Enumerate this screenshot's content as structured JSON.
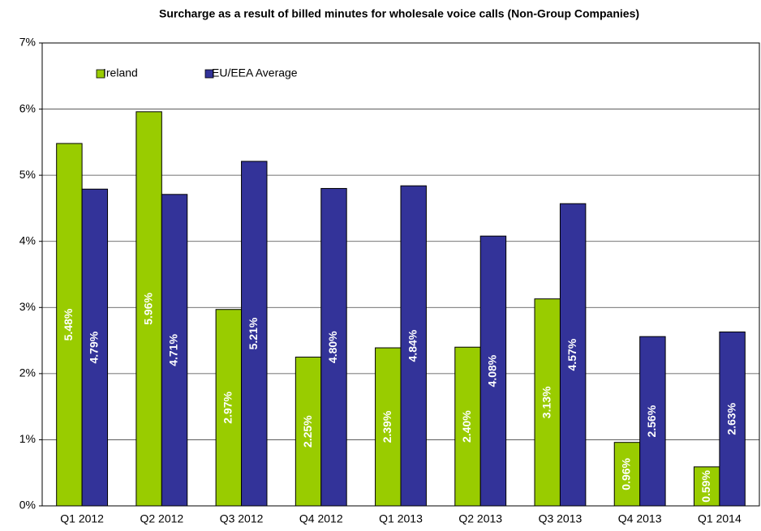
{
  "chart_data": {
    "type": "bar",
    "title": "Surcharge as a result of billed minutes for wholesale voice calls (Non-Group Companies)",
    "categories": [
      "Q1 2012",
      "Q2 2012",
      "Q3 2012",
      "Q4 2012",
      "Q1 2013",
      "Q2 2013",
      "Q3 2013",
      "Q4 2013",
      "Q1 2014"
    ],
    "series": [
      {
        "name": "Ireland",
        "color": "#99cc00",
        "values": [
          5.48,
          5.96,
          2.97,
          2.25,
          2.39,
          2.4,
          3.13,
          0.96,
          0.59
        ],
        "value_labels": [
          "5.48%",
          "5.96%",
          "2.97%",
          "2.25%",
          "2.39%",
          "2.40%",
          "3.13%",
          "0.96%",
          "0.59%"
        ]
      },
      {
        "name": "EU/EEA Average",
        "color": "#333399",
        "values": [
          4.79,
          4.71,
          5.21,
          4.8,
          4.84,
          4.08,
          4.57,
          2.56,
          2.63
        ],
        "value_labels": [
          "4.79%",
          "4.71%",
          "5.21%",
          "4.80%",
          "4.84%",
          "4.08%",
          "4.57%",
          "2.56%",
          "2.63%"
        ]
      }
    ],
    "ylim": [
      0,
      7
    ],
    "yticks": [
      {
        "value": 0,
        "label": "0%"
      },
      {
        "value": 1,
        "label": "1%"
      },
      {
        "value": 2,
        "label": "2%"
      },
      {
        "value": 3,
        "label": "3%"
      },
      {
        "value": 4,
        "label": "4%"
      },
      {
        "value": 5,
        "label": "5%"
      },
      {
        "value": 6,
        "label": "6%"
      },
      {
        "value": 7,
        "label": "7%"
      }
    ],
    "grid": true,
    "legend": "top-left"
  }
}
